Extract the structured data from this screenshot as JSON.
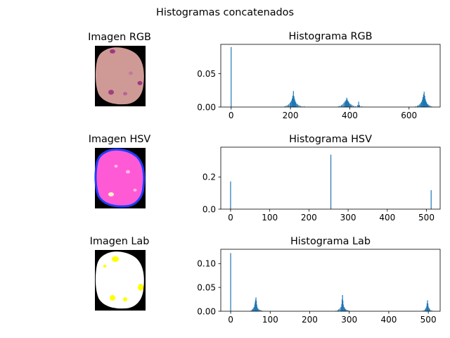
{
  "figure_title": "Histogramas concatenados",
  "colors": {
    "bar": "#1f77b4",
    "axis": "#000000",
    "background": "#ffffff"
  },
  "images": [
    {
      "title": "Imagen RGB",
      "kind": "rgb"
    },
    {
      "title": "Imagen HSV",
      "kind": "hsv"
    },
    {
      "title": "Imagen Lab",
      "kind": "lab"
    }
  ],
  "chart_data": [
    {
      "type": "bar",
      "title": "Histograma RGB",
      "xlabel": "",
      "ylabel": "",
      "xlim": [
        -35,
        705
      ],
      "ylim": [
        0,
        0.094
      ],
      "xticks": [
        0,
        200,
        400,
        600
      ],
      "xtick_labels": [
        "0",
        "200",
        "400",
        "600"
      ],
      "yticks": [
        0,
        0.05
      ],
      "ytick_labels": [
        "0.00",
        "0.05"
      ],
      "grid": false,
      "bars": [
        {
          "x": 0,
          "y": 0.09
        },
        {
          "x": 180,
          "y": 0.001
        },
        {
          "x": 185,
          "y": 0.002
        },
        {
          "x": 190,
          "y": 0.003
        },
        {
          "x": 194,
          "y": 0.004
        },
        {
          "x": 198,
          "y": 0.006
        },
        {
          "x": 201,
          "y": 0.008
        },
        {
          "x": 204,
          "y": 0.01
        },
        {
          "x": 206,
          "y": 0.013
        },
        {
          "x": 208,
          "y": 0.017
        },
        {
          "x": 210,
          "y": 0.024
        },
        {
          "x": 212,
          "y": 0.016
        },
        {
          "x": 214,
          "y": 0.012
        },
        {
          "x": 216,
          "y": 0.009
        },
        {
          "x": 218,
          "y": 0.007
        },
        {
          "x": 221,
          "y": 0.005
        },
        {
          "x": 224,
          "y": 0.004
        },
        {
          "x": 228,
          "y": 0.003
        },
        {
          "x": 233,
          "y": 0.002
        },
        {
          "x": 238,
          "y": 0.001
        },
        {
          "x": 246,
          "y": 0.001
        },
        {
          "x": 362,
          "y": 0.001
        },
        {
          "x": 367,
          "y": 0.002
        },
        {
          "x": 372,
          "y": 0.003
        },
        {
          "x": 376,
          "y": 0.004
        },
        {
          "x": 380,
          "y": 0.006
        },
        {
          "x": 383,
          "y": 0.008
        },
        {
          "x": 386,
          "y": 0.009
        },
        {
          "x": 388,
          "y": 0.011
        },
        {
          "x": 390,
          "y": 0.014
        },
        {
          "x": 392,
          "y": 0.011
        },
        {
          "x": 394,
          "y": 0.009
        },
        {
          "x": 396,
          "y": 0.008
        },
        {
          "x": 398,
          "y": 0.006
        },
        {
          "x": 401,
          "y": 0.005
        },
        {
          "x": 404,
          "y": 0.004
        },
        {
          "x": 408,
          "y": 0.003
        },
        {
          "x": 413,
          "y": 0.002
        },
        {
          "x": 420,
          "y": 0.001
        },
        {
          "x": 427,
          "y": 0.003
        },
        {
          "x": 430,
          "y": 0.008
        },
        {
          "x": 433,
          "y": 0.003
        },
        {
          "x": 440,
          "y": 0.001
        },
        {
          "x": 622,
          "y": 0.001
        },
        {
          "x": 628,
          "y": 0.002
        },
        {
          "x": 632,
          "y": 0.003
        },
        {
          "x": 636,
          "y": 0.004
        },
        {
          "x": 639,
          "y": 0.006
        },
        {
          "x": 642,
          "y": 0.008
        },
        {
          "x": 645,
          "y": 0.011
        },
        {
          "x": 647,
          "y": 0.015
        },
        {
          "x": 649,
          "y": 0.019
        },
        {
          "x": 651,
          "y": 0.023
        },
        {
          "x": 653,
          "y": 0.017
        },
        {
          "x": 655,
          "y": 0.012
        },
        {
          "x": 657,
          "y": 0.009
        },
        {
          "x": 659,
          "y": 0.007
        },
        {
          "x": 661,
          "y": 0.005
        },
        {
          "x": 664,
          "y": 0.004
        },
        {
          "x": 667,
          "y": 0.003
        },
        {
          "x": 671,
          "y": 0.002
        },
        {
          "x": 676,
          "y": 0.001
        }
      ]
    },
    {
      "type": "bar",
      "title": "Histograma HSV",
      "xlabel": "",
      "ylabel": "",
      "xlim": [
        -25,
        535
      ],
      "ylim": [
        0,
        0.385
      ],
      "xticks": [
        0,
        100,
        200,
        300,
        400,
        500
      ],
      "xtick_labels": [
        "0",
        "100",
        "200",
        "300",
        "400",
        "500"
      ],
      "yticks": [
        0,
        0.2
      ],
      "ytick_labels": [
        "0.0",
        "0.2"
      ],
      "grid": false,
      "bars": [
        {
          "x": 0,
          "y": 0.172
        },
        {
          "x": 256,
          "y": 0.338
        },
        {
          "x": 512,
          "y": 0.118
        }
      ]
    },
    {
      "type": "bar",
      "title": "Histograma Lab",
      "xlabel": "",
      "ylabel": "",
      "xlim": [
        -25,
        530
      ],
      "ylim": [
        0,
        0.13
      ],
      "xticks": [
        0,
        100,
        200,
        300,
        400,
        500
      ],
      "xtick_labels": [
        "0",
        "100",
        "200",
        "300",
        "400",
        "500"
      ],
      "yticks": [
        0,
        0.05,
        0.1
      ],
      "ytick_labels": [
        "0.00",
        "0.05",
        "0.10"
      ],
      "grid": false,
      "bars": [
        {
          "x": 0,
          "y": 0.122
        },
        {
          "x": 50,
          "y": 0.001
        },
        {
          "x": 53,
          "y": 0.002
        },
        {
          "x": 55,
          "y": 0.004
        },
        {
          "x": 57,
          "y": 0.006
        },
        {
          "x": 59,
          "y": 0.009
        },
        {
          "x": 61,
          "y": 0.014
        },
        {
          "x": 62,
          "y": 0.019
        },
        {
          "x": 63,
          "y": 0.024
        },
        {
          "x": 64,
          "y": 0.029
        },
        {
          "x": 65,
          "y": 0.022
        },
        {
          "x": 66,
          "y": 0.014
        },
        {
          "x": 67,
          "y": 0.009
        },
        {
          "x": 69,
          "y": 0.006
        },
        {
          "x": 71,
          "y": 0.004
        },
        {
          "x": 74,
          "y": 0.003
        },
        {
          "x": 77,
          "y": 0.002
        },
        {
          "x": 80,
          "y": 0.001
        },
        {
          "x": 266,
          "y": 0.001
        },
        {
          "x": 270,
          "y": 0.002
        },
        {
          "x": 273,
          "y": 0.004
        },
        {
          "x": 276,
          "y": 0.006
        },
        {
          "x": 279,
          "y": 0.009
        },
        {
          "x": 281,
          "y": 0.015
        },
        {
          "x": 282,
          "y": 0.025
        },
        {
          "x": 283,
          "y": 0.034
        },
        {
          "x": 284,
          "y": 0.022
        },
        {
          "x": 285,
          "y": 0.014
        },
        {
          "x": 287,
          "y": 0.009
        },
        {
          "x": 289,
          "y": 0.006
        },
        {
          "x": 291,
          "y": 0.004
        },
        {
          "x": 294,
          "y": 0.003
        },
        {
          "x": 297,
          "y": 0.002
        },
        {
          "x": 301,
          "y": 0.001
        },
        {
          "x": 486,
          "y": 0.001
        },
        {
          "x": 489,
          "y": 0.002
        },
        {
          "x": 492,
          "y": 0.004
        },
        {
          "x": 494,
          "y": 0.007
        },
        {
          "x": 496,
          "y": 0.011
        },
        {
          "x": 497,
          "y": 0.017
        },
        {
          "x": 498,
          "y": 0.023
        },
        {
          "x": 499,
          "y": 0.016
        },
        {
          "x": 500,
          "y": 0.01
        },
        {
          "x": 502,
          "y": 0.007
        },
        {
          "x": 504,
          "y": 0.004
        },
        {
          "x": 507,
          "y": 0.002
        },
        {
          "x": 510,
          "y": 0.001
        }
      ]
    }
  ]
}
